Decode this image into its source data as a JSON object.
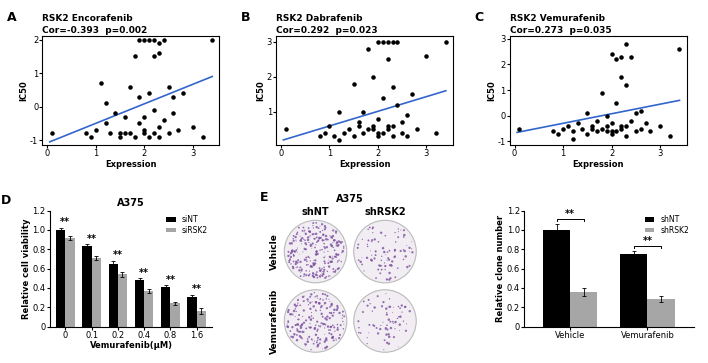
{
  "chart_data": [
    {
      "type": "scatter",
      "title": "RSK2 Encorafenib",
      "subtitle": "Cor=-0.393  p=0.002",
      "annotations": [
        "A"
      ],
      "x_label": "Expression",
      "y_label": "IC50",
      "color": "#000000",
      "x": [
        0.1,
        0.8,
        0.9,
        1.0,
        1.1,
        1.2,
        1.3,
        1.4,
        1.5,
        1.5,
        1.6,
        1.7,
        1.7,
        1.8,
        1.8,
        1.9,
        1.9,
        1.9,
        2.0,
        2.0,
        2.0,
        2.1,
        2.1,
        2.1,
        2.2,
        2.2,
        2.2,
        2.3,
        2.3,
        2.3,
        2.4,
        2.4,
        2.5,
        2.5,
        2.6,
        2.7,
        2.8,
        3.0,
        3.2,
        3.4,
        1.2,
        2.6,
        1.6,
        2.3,
        2.0,
        2.2
      ],
      "y": [
        -0.8,
        -0.8,
        -0.9,
        -0.7,
        0.7,
        -0.5,
        -0.8,
        -0.2,
        -0.8,
        -0.9,
        -0.3,
        -0.8,
        0.6,
        -0.9,
        1.5,
        2.0,
        -0.5,
        0.3,
        2.0,
        -0.8,
        -0.3,
        2.0,
        -0.9,
        0.4,
        2.0,
        -0.8,
        1.5,
        1.9,
        -0.6,
        -0.9,
        2.0,
        -0.4,
        -0.8,
        0.6,
        -0.2,
        -0.7,
        0.4,
        -0.6,
        -0.9,
        2.0,
        0.1,
        0.3,
        -0.8,
        1.6,
        -0.7,
        -0.1
      ],
      "fit": {
        "x": [
          0.05,
          3.4
        ],
        "y": [
          -1.05,
          0.9
        ],
        "color": "#3366cc"
      },
      "xlim": [
        -0.1,
        3.55
      ],
      "xticks": [
        0,
        1,
        2,
        3
      ],
      "ylim": [
        -1.15,
        2.1
      ],
      "yticks": [
        -1,
        0,
        1,
        2
      ]
    },
    {
      "type": "scatter",
      "title": "RSK2 Dabrafenib",
      "subtitle": "Cor=0.292  p=0.023",
      "annotations": [
        "B"
      ],
      "x_label": "Expression",
      "y_label": "IC50",
      "color": "#000000",
      "x": [
        0.1,
        0.8,
        0.9,
        1.0,
        1.1,
        1.2,
        1.3,
        1.4,
        1.5,
        1.5,
        1.6,
        1.7,
        1.7,
        1.8,
        1.8,
        1.9,
        1.9,
        1.9,
        2.0,
        2.0,
        2.0,
        2.1,
        2.1,
        2.1,
        2.2,
        2.2,
        2.2,
        2.3,
        2.3,
        2.3,
        2.4,
        2.4,
        2.5,
        2.5,
        2.6,
        2.7,
        2.8,
        3.0,
        3.2,
        3.4,
        1.2,
        2.6,
        1.6,
        2.3,
        2.0,
        2.2
      ],
      "y": [
        0.5,
        0.3,
        0.4,
        0.6,
        0.3,
        1.0,
        0.4,
        0.5,
        1.8,
        0.3,
        0.6,
        0.4,
        1.0,
        0.5,
        2.8,
        0.6,
        2.0,
        0.5,
        3.0,
        0.3,
        0.8,
        3.0,
        0.4,
        1.4,
        3.0,
        0.5,
        2.5,
        3.0,
        0.6,
        0.3,
        3.0,
        1.2,
        0.4,
        0.7,
        0.3,
        1.5,
        0.5,
        2.6,
        0.4,
        3.0,
        0.2,
        0.9,
        0.7,
        1.7,
        0.4,
        0.6
      ],
      "fit": {
        "x": [
          0.05,
          3.4
        ],
        "y": [
          0.2,
          1.6
        ],
        "color": "#3366cc"
      },
      "xlim": [
        -0.1,
        3.55
      ],
      "xticks": [
        0,
        1,
        2,
        3
      ],
      "ylim": [
        0.05,
        3.15
      ],
      "yticks": [
        1,
        2,
        3
      ]
    },
    {
      "type": "scatter",
      "title": "RSK2 Vemurafenib",
      "subtitle": "Cor=0.273  p=0.035",
      "annotations": [
        "C"
      ],
      "x_label": "Expression",
      "y_label": "IC50",
      "color": "#000000",
      "x": [
        0.1,
        0.8,
        0.9,
        1.0,
        1.1,
        1.2,
        1.3,
        1.4,
        1.5,
        1.5,
        1.6,
        1.7,
        1.7,
        1.8,
        1.8,
        1.9,
        1.9,
        1.9,
        2.0,
        2.0,
        2.0,
        2.1,
        2.1,
        2.1,
        2.2,
        2.2,
        2.2,
        2.3,
        2.3,
        2.3,
        2.4,
        2.4,
        2.5,
        2.5,
        2.6,
        2.7,
        2.8,
        3.0,
        3.2,
        3.4,
        1.2,
        2.6,
        1.6,
        2.3,
        2.0,
        2.2
      ],
      "y": [
        -0.5,
        -0.6,
        -0.7,
        -0.5,
        -0.4,
        -0.6,
        -0.3,
        -0.5,
        0.1,
        -0.7,
        -0.4,
        -0.6,
        -0.2,
        -0.5,
        0.9,
        -0.6,
        0.0,
        -0.4,
        2.4,
        -0.7,
        -0.3,
        2.2,
        -0.6,
        0.5,
        2.3,
        -0.5,
        1.5,
        2.8,
        -0.4,
        -0.8,
        2.3,
        -0.2,
        -0.6,
        0.1,
        -0.5,
        -0.3,
        -0.6,
        -0.4,
        -0.8,
        2.6,
        -0.9,
        0.2,
        -0.5,
        1.2,
        -0.6,
        -0.4
      ],
      "fit": {
        "x": [
          0.05,
          3.4
        ],
        "y": [
          -0.65,
          0.6
        ],
        "color": "#3366cc"
      },
      "xlim": [
        -0.1,
        3.55
      ],
      "xticks": [
        0,
        1,
        2,
        3
      ],
      "ylim": [
        -1.15,
        3.1
      ],
      "yticks": [
        -1,
        0,
        1,
        2,
        3
      ]
    },
    {
      "type": "bar",
      "title": "A375",
      "annotations": [
        "D"
      ],
      "x_label": "Vemurafenib(μM)",
      "y_label": "Relative cell viability",
      "categories": [
        "0",
        "0.1",
        "0.2",
        "0.4",
        "0.8",
        "1.6"
      ],
      "series": [
        {
          "name": "siNT",
          "color": "#000000",
          "values": [
            1.0,
            0.83,
            0.65,
            0.48,
            0.41,
            0.31
          ],
          "errors": [
            0.02,
            0.02,
            0.03,
            0.02,
            0.02,
            0.02
          ]
        },
        {
          "name": "siRSK2",
          "color": "#a6a6a6",
          "values": [
            0.92,
            0.71,
            0.54,
            0.37,
            0.24,
            0.16
          ],
          "errors": [
            0.02,
            0.02,
            0.03,
            0.02,
            0.02,
            0.03
          ]
        }
      ],
      "significance": [
        "**",
        "**",
        "**",
        "**",
        "**",
        "**"
      ],
      "ylim": [
        0,
        1.2
      ],
      "yticks": [
        0,
        0.2,
        0.4,
        0.6,
        0.8,
        {
          "value": 1,
          "label": "1.0"
        },
        1.2
      ],
      "legend": "upper right"
    },
    {
      "type": "image",
      "title": "A375",
      "annotations": [
        "E"
      ],
      "columns": [
        "shNT",
        "shRSK2"
      ],
      "rows": [
        "Vehicle",
        "Vemurafenib"
      ]
    },
    {
      "type": "bar",
      "y_label": "Relative clone number",
      "categories": [
        "Vehicle",
        "Vemurafenib"
      ],
      "series": [
        {
          "name": "shNT",
          "color": "#000000",
          "values": [
            1.0,
            0.75
          ],
          "errors": [
            0.06,
            0.03
          ]
        },
        {
          "name": "shRSK2",
          "color": "#a6a6a6",
          "values": [
            0.36,
            0.29
          ],
          "errors": [
            0.04,
            0.03
          ]
        }
      ],
      "significance": [
        "**",
        "**"
      ],
      "ylim": [
        0,
        1.2
      ],
      "yticks": [
        0,
        0.2,
        0.4,
        0.6,
        0.8,
        {
          "value": 1,
          "label": "1.0"
        },
        1.2
      ],
      "legend": "upper right"
    }
  ]
}
